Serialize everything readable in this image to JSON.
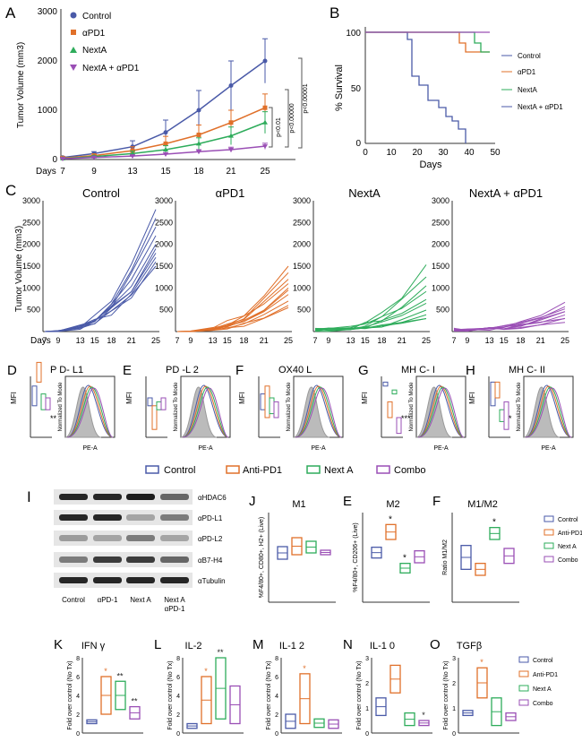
{
  "colors": {
    "control": "#4a5aa8",
    "apd1": "#e0702a",
    "nexta": "#2eac5b",
    "combo": "#9a4fb5",
    "grey": "#999999"
  },
  "panelA": {
    "letter": "A",
    "ylabel": "Tumor Volume (mm3)",
    "xprefix": "Days",
    "x": [
      7,
      9,
      13,
      15,
      18,
      21,
      25
    ],
    "yticks": [
      "0",
      "1000",
      "2000",
      "3000"
    ],
    "legend": [
      "Control",
      "αPD1",
      "NextA",
      "NextA + αPD1"
    ],
    "pvals": [
      "p<0.01",
      "p<0.00000",
      "p<0.00001"
    ],
    "series": [
      {
        "name": "Control",
        "values": [
          40,
          120,
          260,
          550,
          1000,
          1500,
          2000
        ],
        "err": [
          20,
          40,
          120,
          250,
          400,
          500,
          450
        ]
      },
      {
        "name": "αPD1",
        "values": [
          30,
          80,
          180,
          320,
          500,
          750,
          1050
        ],
        "err": [
          15,
          30,
          80,
          150,
          200,
          250,
          280
        ]
      },
      {
        "name": "NextA",
        "values": [
          20,
          60,
          120,
          200,
          320,
          480,
          750
        ],
        "err": [
          10,
          20,
          50,
          80,
          120,
          180,
          220
        ]
      },
      {
        "name": "NextA + αPD1",
        "values": [
          15,
          40,
          70,
          110,
          160,
          200,
          270
        ],
        "err": [
          8,
          15,
          20,
          30,
          40,
          50,
          60
        ]
      }
    ]
  },
  "panelB": {
    "letter": "B",
    "ylabel": "% Survival",
    "xlabel": "Days",
    "yticks": [
      "0",
      "50",
      "100"
    ],
    "xticks": [
      "0",
      "10",
      "20",
      "30",
      "40",
      "50"
    ],
    "legend": [
      "Control",
      "αPD1",
      "NextA",
      "NextA + αPD1"
    ]
  },
  "panelC": {
    "letter": "C",
    "ylabel": "Tumor Volume (mm3)",
    "xprefix": "Days",
    "xticks": [
      "7",
      "9",
      "13",
      "15",
      "18",
      "21",
      "25"
    ],
    "yticks": [
      "500",
      "1000",
      "1500",
      "2000",
      "2500",
      "3000"
    ],
    "titles": [
      "Control",
      "αPD1",
      "NextA",
      "NextA + αPD1"
    ]
  },
  "flowPanels": [
    {
      "letter": "D",
      "title": "P D- L1",
      "stars": "**"
    },
    {
      "letter": "E",
      "title": "PD -L 2",
      "stars": ""
    },
    {
      "letter": "F",
      "title": "OX40 L",
      "stars": ""
    },
    {
      "letter": "G",
      "title": "MH C- I",
      "stars": "***"
    },
    {
      "letter": "H",
      "title": "MH C- II",
      "stars": "*"
    }
  ],
  "flowAxis": {
    "ylabel": "MFI",
    "histY": "Normalized To Mode",
    "histX": "PE-A"
  },
  "flowLegend": [
    "Control",
    "Anti-PD1",
    "Next A",
    "Combo"
  ],
  "westernI": {
    "letter": "I",
    "bands": [
      "αHDAC6",
      "αPD-L1",
      "αPD-L2",
      "αB7-H4",
      "αTubulin"
    ],
    "lanes": [
      "Control",
      "αPD-1",
      "Next A",
      "Next A\nαPD-1"
    ]
  },
  "panelJ": {
    "letter": "J",
    "title": "M1",
    "ylabel": "%F4/80+, CD80+, H2+ (Live)",
    "yticks": [
      "0",
      "2",
      "4",
      "6",
      "8",
      "10"
    ]
  },
  "panelE2": {
    "letter": "E",
    "title": "M2",
    "ylabel": "%F4/80+, CD206+ (Live)",
    "yticks": [
      "0",
      "5",
      "10",
      "15"
    ]
  },
  "panelF2": {
    "letter": "F",
    "title": "M1/M2",
    "ylabel": "Ratio M1/M2",
    "yticks": [
      "0.0",
      "0.5",
      "1.0",
      "1.5"
    ]
  },
  "smallLegend": [
    "Control",
    "Anti-PD1",
    "Next A",
    "Combo"
  ],
  "cytokines": [
    {
      "letter": "K",
      "title": "IFN γ",
      "yticks": [
        "0",
        "2",
        "4",
        "6",
        "8"
      ]
    },
    {
      "letter": "L",
      "title": "IL-2",
      "yticks": [
        "0",
        "2",
        "4",
        "6",
        "8"
      ]
    },
    {
      "letter": "M",
      "title": "IL-1 2",
      "yticks": [
        "0",
        "2",
        "4",
        "6",
        "8"
      ]
    },
    {
      "letter": "N",
      "title": "IL-1 0",
      "yticks": [
        "0",
        "1",
        "2",
        "3"
      ]
    },
    {
      "letter": "O",
      "title": "TGFβ",
      "yticks": [
        "0",
        "1",
        "2",
        "3"
      ]
    }
  ],
  "cytoYlabel": "Fold over control (No Tx)"
}
